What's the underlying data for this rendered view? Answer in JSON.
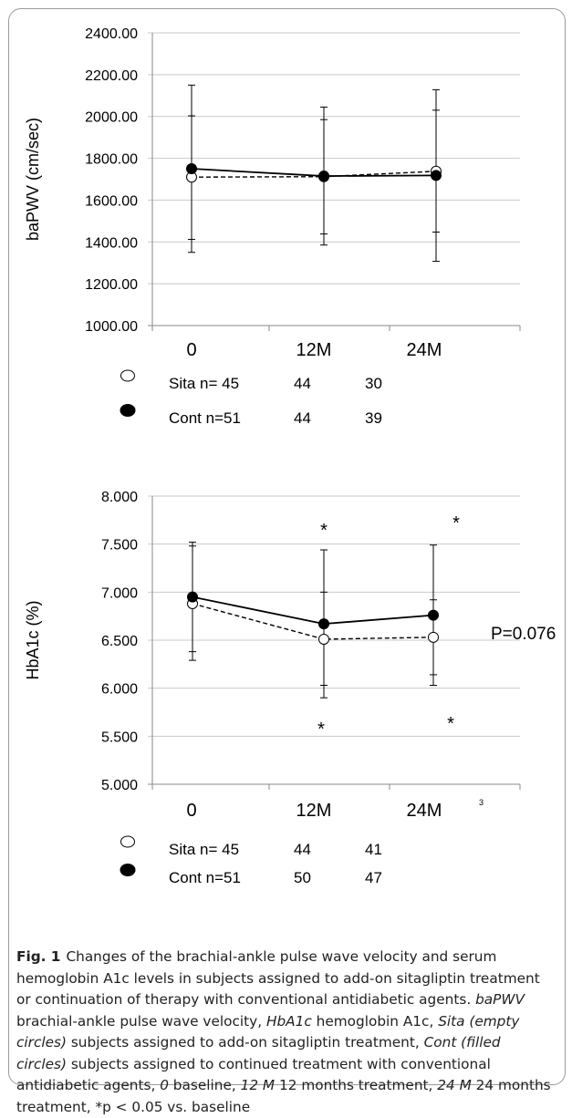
{
  "chart_data": [
    {
      "type": "line",
      "ylabel": "baPWV (cm/sec)",
      "ylim": [
        1000,
        2400
      ],
      "y_ticks": [
        "2400.00",
        "2200.00",
        "2000.00",
        "1800.00",
        "1600.00",
        "1400.00",
        "1200.00",
        "1000.00"
      ],
      "categories": [
        "0",
        "12M",
        "24M"
      ],
      "grid": true,
      "series": [
        {
          "name": "Sita",
          "marker": "empty-circle",
          "line": "dashed",
          "values": [
            1710,
            1712,
            1738
          ],
          "err_upper": [
            2003,
            1985,
            2030
          ],
          "err_lower": [
            1412,
            1438,
            1447
          ]
        },
        {
          "name": "Cont",
          "marker": "filled-circle",
          "line": "solid",
          "values": [
            1750,
            1715,
            1718
          ],
          "err_upper": [
            2150,
            2045,
            2128
          ],
          "err_lower": [
            1350,
            1385,
            1307
          ]
        }
      ],
      "legend": [
        {
          "label": "Sita  n= 45",
          "n2": "44",
          "n3": "30"
        },
        {
          "label": "Cont n=51",
          "n2": "44",
          "n3": "39"
        }
      ]
    },
    {
      "type": "line",
      "ylabel": "HbA1c (%)",
      "ylim": [
        5.0,
        8.0
      ],
      "y_ticks": [
        "8.000",
        "7.500",
        "7.000",
        "6.500",
        "6.000",
        "5.500",
        "5.000"
      ],
      "categories": [
        "0",
        "12M",
        "24M"
      ],
      "grid": true,
      "series": [
        {
          "name": "Sita",
          "marker": "empty-circle",
          "line": "dashed",
          "values": [
            6.88,
            6.51,
            6.53
          ],
          "err_upper": [
            7.48,
            7.0,
            6.92
          ],
          "err_lower": [
            6.29,
            5.9,
            6.03
          ]
        },
        {
          "name": "Cont",
          "marker": "filled-circle",
          "line": "solid",
          "values": [
            6.95,
            6.67,
            6.76
          ],
          "err_upper": [
            7.52,
            7.44,
            7.49
          ],
          "err_lower": [
            6.38,
            6.03,
            6.14
          ]
        }
      ],
      "annotations": {
        "star": "*",
        "p_value": "P=0.076",
        "small_mark": "3"
      },
      "legend": [
        {
          "label": "Sita  n= 45",
          "n2": "44",
          "n3": "41"
        },
        {
          "label": "Cont n=51",
          "n2": "50",
          "n3": "47"
        }
      ]
    }
  ],
  "caption": {
    "label": "Fig. 1",
    "text1": "Changes of the brachial-ankle pulse wave velocity and serum hemoglobin A1c levels in subjects assigned to add-on sitagliptin treatment or continuation of therapy with conventional antidiabetic agents. ",
    "term_bapwv": "baPWV",
    "text2": " brachial-ankle pulse wave velocity, ",
    "term_hba1c": "HbA1c",
    "text3": " hemoglobin A1c, ",
    "term_sita": "Sita (empty circles)",
    "text4": " subjects assigned to add-on sitagliptin treatment, ",
    "term_cont": "Cont (filled circles)",
    "text5": " subjects assigned to continued treatment with conventional antidiabetic agents, ",
    "term_0": "0",
    "text6": " baseline, ",
    "term_12": "12 M",
    "text7": " 12 months treatment, ",
    "term_24": "24 M",
    "text8": " 24 months treatment, *p < 0.05 vs. baseline"
  }
}
